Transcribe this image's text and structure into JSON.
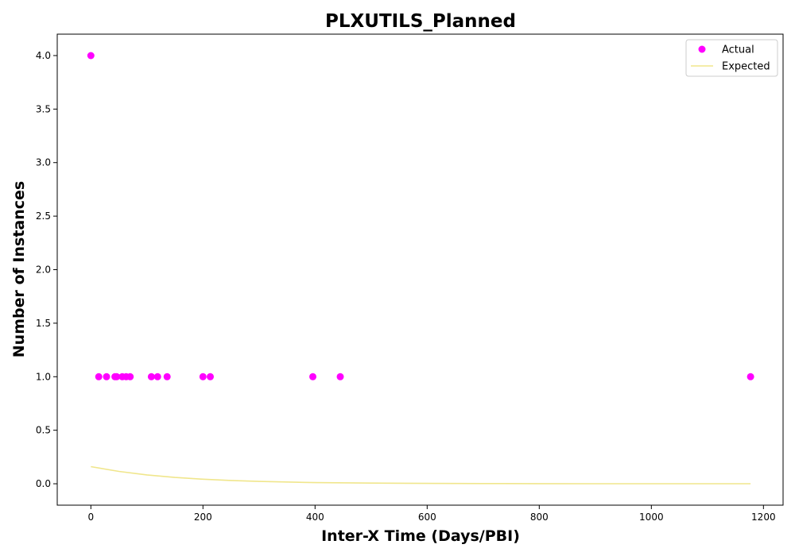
{
  "chart_data": {
    "type": "scatter",
    "title": "PLXUTILS_Planned",
    "xlabel": "Inter-X Time (Days/PBI)",
    "ylabel": "Number of Instances",
    "xlim": [
      -60,
      1235
    ],
    "ylim": [
      -0.2,
      4.2
    ],
    "xticks": [
      0,
      200,
      400,
      600,
      800,
      1000,
      1200
    ],
    "yticks": [
      0.0,
      0.5,
      1.0,
      1.5,
      2.0,
      2.5,
      3.0,
      3.5,
      4.0
    ],
    "grid": false,
    "legend_position": "top-right",
    "series": [
      {
        "name": "Actual",
        "kind": "scatter",
        "color": "#ff00ff",
        "points": [
          {
            "x": 0,
            "y": 4
          },
          {
            "x": 14,
            "y": 1
          },
          {
            "x": 28,
            "y": 1
          },
          {
            "x": 43,
            "y": 1
          },
          {
            "x": 46,
            "y": 1
          },
          {
            "x": 56,
            "y": 1
          },
          {
            "x": 63,
            "y": 1
          },
          {
            "x": 70,
            "y": 1
          },
          {
            "x": 108,
            "y": 1
          },
          {
            "x": 119,
            "y": 1
          },
          {
            "x": 136,
            "y": 1
          },
          {
            "x": 200,
            "y": 1
          },
          {
            "x": 213,
            "y": 1
          },
          {
            "x": 396,
            "y": 1
          },
          {
            "x": 445,
            "y": 1
          },
          {
            "x": 1177,
            "y": 1
          }
        ]
      },
      {
        "name": "Expected",
        "kind": "line",
        "color": "#f0e68c",
        "points": [
          {
            "x": 0,
            "y": 0.16
          },
          {
            "x": 50,
            "y": 0.115
          },
          {
            "x": 100,
            "y": 0.083
          },
          {
            "x": 150,
            "y": 0.059
          },
          {
            "x": 200,
            "y": 0.043
          },
          {
            "x": 250,
            "y": 0.031
          },
          {
            "x": 300,
            "y": 0.022
          },
          {
            "x": 400,
            "y": 0.011
          },
          {
            "x": 500,
            "y": 0.006
          },
          {
            "x": 600,
            "y": 0.003
          },
          {
            "x": 700,
            "y": 0.0015
          },
          {
            "x": 800,
            "y": 0.0008
          },
          {
            "x": 900,
            "y": 0.0004
          },
          {
            "x": 1000,
            "y": 0.0002
          },
          {
            "x": 1100,
            "y": 0.0001
          },
          {
            "x": 1177,
            "y": 0.0
          }
        ]
      }
    ]
  }
}
